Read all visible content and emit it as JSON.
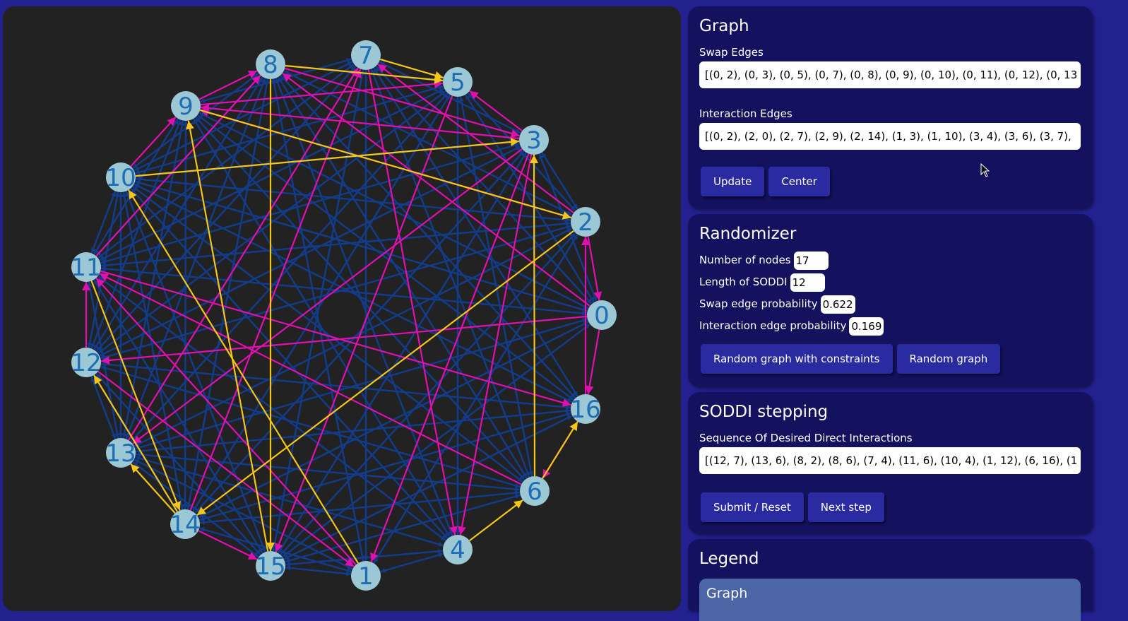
{
  "colors": {
    "background": "#23218f",
    "canvas": "#222222",
    "card": "#14115f",
    "button": "#2a2ba0",
    "node_fill": "#9cc7d4",
    "node_text": "#1f6db3",
    "edge_blue": "#123c8a",
    "edge_pink": "#e010b0",
    "edge_yellow": "#f5c518",
    "legend_header": "#4c66a6"
  },
  "graph": {
    "nodes": [
      "0",
      "1",
      "2",
      "3",
      "4",
      "5",
      "6",
      "7",
      "8",
      "9",
      "10",
      "11",
      "12",
      "13",
      "14",
      "15",
      "16"
    ],
    "pink_edges": [
      [
        9,
        8
      ],
      [
        9,
        5
      ],
      [
        3,
        9
      ],
      [
        8,
        3
      ],
      [
        7,
        4
      ],
      [
        5,
        15
      ],
      [
        3,
        13
      ],
      [
        3,
        1
      ],
      [
        3,
        4
      ],
      [
        10,
        9
      ],
      [
        11,
        8
      ],
      [
        0,
        8
      ],
      [
        0,
        12
      ],
      [
        11,
        16
      ],
      [
        12,
        1
      ],
      [
        14,
        15
      ],
      [
        12,
        11
      ],
      [
        2,
        0
      ],
      [
        0,
        16
      ],
      [
        16,
        6
      ],
      [
        6,
        11
      ],
      [
        1,
        11
      ],
      [
        14,
        7
      ],
      [
        13,
        7
      ],
      [
        2,
        7
      ],
      [
        2,
        9
      ],
      [
        16,
        2
      ],
      [
        3,
        5
      ]
    ],
    "yellow_edges": [
      [
        7,
        5
      ],
      [
        8,
        5
      ],
      [
        10,
        3
      ],
      [
        9,
        2
      ],
      [
        1,
        10
      ],
      [
        8,
        15
      ],
      [
        15,
        9
      ],
      [
        2,
        14
      ],
      [
        14,
        13
      ],
      [
        14,
        12
      ],
      [
        11,
        14
      ],
      [
        4,
        6
      ],
      [
        6,
        16
      ],
      [
        6,
        3
      ]
    ],
    "blue_edges": [
      [
        0,
        3
      ],
      [
        0,
        5
      ],
      [
        0,
        7
      ],
      [
        0,
        9
      ],
      [
        0,
        10
      ],
      [
        0,
        11
      ],
      [
        0,
        13
      ],
      [
        0,
        14
      ],
      [
        0,
        15
      ],
      [
        1,
        2
      ],
      [
        1,
        4
      ],
      [
        1,
        7
      ],
      [
        1,
        8
      ],
      [
        1,
        13
      ],
      [
        1,
        15
      ],
      [
        2,
        3
      ],
      [
        2,
        5
      ],
      [
        2,
        8
      ],
      [
        2,
        10
      ],
      [
        2,
        11
      ],
      [
        2,
        12
      ],
      [
        2,
        13
      ],
      [
        2,
        15
      ],
      [
        3,
        7
      ],
      [
        3,
        10
      ],
      [
        3,
        11
      ],
      [
        3,
        12
      ],
      [
        3,
        14
      ],
      [
        3,
        15
      ],
      [
        4,
        5
      ],
      [
        4,
        8
      ],
      [
        4,
        9
      ],
      [
        4,
        10
      ],
      [
        4,
        11
      ],
      [
        4,
        13
      ],
      [
        4,
        15
      ],
      [
        5,
        6
      ],
      [
        5,
        10
      ],
      [
        5,
        11
      ],
      [
        5,
        12
      ],
      [
        5,
        14
      ],
      [
        6,
        7
      ],
      [
        6,
        8
      ],
      [
        6,
        9
      ],
      [
        6,
        10
      ],
      [
        6,
        12
      ],
      [
        6,
        13
      ],
      [
        6,
        14
      ],
      [
        6,
        15
      ],
      [
        7,
        9
      ],
      [
        7,
        10
      ],
      [
        7,
        11
      ],
      [
        7,
        12
      ],
      [
        7,
        16
      ],
      [
        8,
        10
      ],
      [
        8,
        11
      ],
      [
        8,
        12
      ],
      [
        8,
        13
      ],
      [
        8,
        14
      ],
      [
        8,
        16
      ],
      [
        9,
        11
      ],
      [
        9,
        12
      ],
      [
        9,
        13
      ],
      [
        9,
        14
      ],
      [
        9,
        16
      ],
      [
        10,
        11
      ],
      [
        10,
        12
      ],
      [
        10,
        13
      ],
      [
        10,
        14
      ],
      [
        10,
        15
      ],
      [
        10,
        16
      ],
      [
        11,
        13
      ],
      [
        11,
        15
      ],
      [
        12,
        13
      ],
      [
        12,
        14
      ],
      [
        12,
        15
      ],
      [
        12,
        16
      ],
      [
        13,
        15
      ],
      [
        13,
        16
      ],
      [
        14,
        16
      ],
      [
        15,
        16
      ],
      [
        1,
        14
      ],
      [
        5,
        13
      ],
      [
        7,
        15
      ]
    ]
  },
  "graph_card": {
    "title": "Graph",
    "swap_label": "Swap Edges",
    "swap_value": "[(0, 2), (0, 3), (0, 5), (0, 7), (0, 8), (0, 9), (0, 10), (0, 11), (0, 12), (0, 13",
    "interaction_label": "Interaction Edges",
    "interaction_value": "[(0, 2), (2, 0), (2, 7), (2, 9), (2, 14), (1, 3), (1, 10), (3, 4), (3, 6), (3, 7),",
    "update_button": "Update",
    "center_button": "Center"
  },
  "randomizer": {
    "title": "Randomizer",
    "nodes_label": "Number of nodes",
    "nodes_value": "17",
    "length_label": "Length of SODDI",
    "length_value": "12",
    "swap_prob_label": "Swap edge probability",
    "swap_prob_value": "0.622",
    "int_prob_label": "Interaction edge probability",
    "int_prob_value": "0.169",
    "constrained_button": "Random graph with constraints",
    "random_button": "Random graph"
  },
  "soddi": {
    "title": "SODDI stepping",
    "seq_label": "Sequence Of Desired Direct Interactions",
    "seq_value": "[(12, 7), (13, 6), (8, 2), (8, 6), (7, 4), (11, 6), (10, 4), (1, 12), (6, 16), (1",
    "submit_button": "Submit / Reset",
    "next_button": "Next step"
  },
  "legend": {
    "title": "Legend",
    "graph_header": "Graph"
  }
}
